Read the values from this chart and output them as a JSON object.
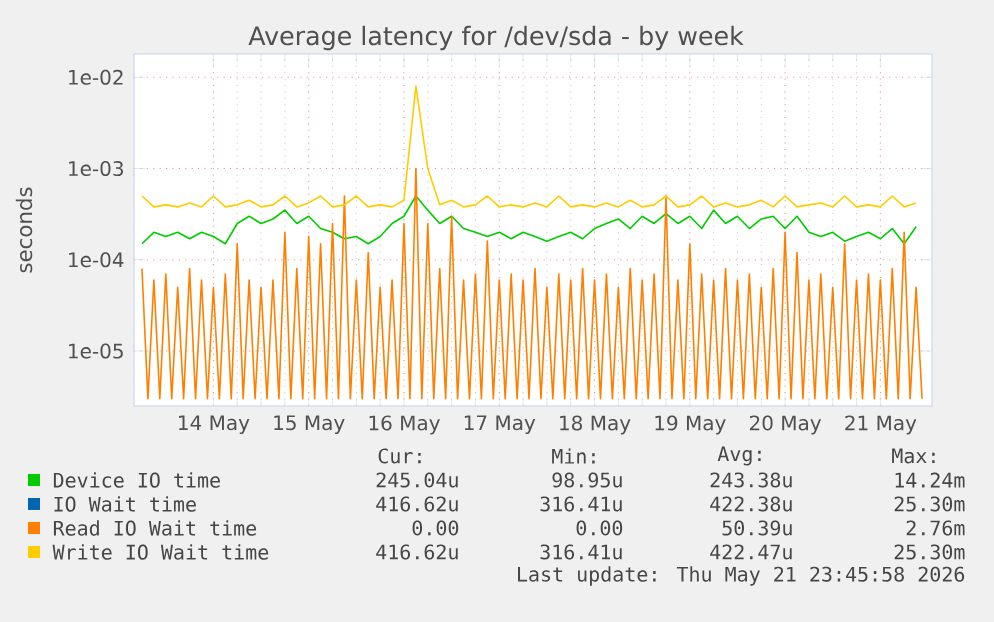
{
  "chart_data": {
    "type": "line",
    "title": "Average latency for /dev/sda - by week",
    "ylabel": "seconds",
    "log": "y",
    "grid": true,
    "legend": "bottom",
    "ylim": [
      2.5e-06,
      0.018
    ],
    "yticks": [
      {
        "value": 1e-05,
        "label": "1e-05"
      },
      {
        "value": 0.0001,
        "label": "1e-04"
      },
      {
        "value": 0.001,
        "label": "1e-03"
      },
      {
        "value": 0.01,
        "label": "1e-02"
      }
    ],
    "xlim": [
      "2026-05-13T16:00",
      "2026-05-22T01:00"
    ],
    "xticks": [
      {
        "value": "2026-05-14T12:00",
        "label": "14 May"
      },
      {
        "value": "2026-05-15T12:00",
        "label": "15 May"
      },
      {
        "value": "2026-05-16T12:00",
        "label": "16 May"
      },
      {
        "value": "2026-05-17T12:00",
        "label": "17 May"
      },
      {
        "value": "2026-05-18T12:00",
        "label": "18 May"
      },
      {
        "value": "2026-05-19T12:00",
        "label": "19 May"
      },
      {
        "value": "2026-05-20T12:00",
        "label": "20 May"
      },
      {
        "value": "2026-05-21T12:00",
        "label": "21 May"
      }
    ],
    "x": [
      "2026-05-13T18:00",
      "2026-05-13T21:00",
      "2026-05-14T00:00",
      "2026-05-14T03:00",
      "2026-05-14T06:00",
      "2026-05-14T09:00",
      "2026-05-14T12:00",
      "2026-05-14T15:00",
      "2026-05-14T18:00",
      "2026-05-14T21:00",
      "2026-05-15T00:00",
      "2026-05-15T03:00",
      "2026-05-15T06:00",
      "2026-05-15T09:00",
      "2026-05-15T12:00",
      "2026-05-15T15:00",
      "2026-05-15T18:00",
      "2026-05-15T21:00",
      "2026-05-16T00:00",
      "2026-05-16T03:00",
      "2026-05-16T06:00",
      "2026-05-16T09:00",
      "2026-05-16T12:00",
      "2026-05-16T15:00",
      "2026-05-16T18:00",
      "2026-05-16T21:00",
      "2026-05-17T00:00",
      "2026-05-17T03:00",
      "2026-05-17T06:00",
      "2026-05-17T09:00",
      "2026-05-17T12:00",
      "2026-05-17T15:00",
      "2026-05-17T18:00",
      "2026-05-17T21:00",
      "2026-05-18T00:00",
      "2026-05-18T03:00",
      "2026-05-18T06:00",
      "2026-05-18T09:00",
      "2026-05-18T12:00",
      "2026-05-18T15:00",
      "2026-05-18T18:00",
      "2026-05-18T21:00",
      "2026-05-19T00:00",
      "2026-05-19T03:00",
      "2026-05-19T06:00",
      "2026-05-19T09:00",
      "2026-05-19T12:00",
      "2026-05-19T15:00",
      "2026-05-19T18:00",
      "2026-05-19T21:00",
      "2026-05-20T00:00",
      "2026-05-20T03:00",
      "2026-05-20T06:00",
      "2026-05-20T09:00",
      "2026-05-20T12:00",
      "2026-05-20T15:00",
      "2026-05-20T18:00",
      "2026-05-20T21:00",
      "2026-05-21T00:00",
      "2026-05-21T03:00",
      "2026-05-21T06:00",
      "2026-05-21T09:00",
      "2026-05-21T12:00",
      "2026-05-21T15:00",
      "2026-05-21T18:00",
      "2026-05-21T21:00"
    ],
    "series": [
      {
        "name": "Device IO time",
        "color": "#00cc00",
        "values": [
          0.00015,
          0.0002,
          0.00018,
          0.0002,
          0.00017,
          0.0002,
          0.00018,
          0.00015,
          0.00025,
          0.0003,
          0.00025,
          0.00028,
          0.00035,
          0.00025,
          0.0003,
          0.00022,
          0.0002,
          0.00017,
          0.00018,
          0.00015,
          0.00018,
          0.00025,
          0.0003,
          0.0005,
          0.00035,
          0.00025,
          0.0003,
          0.00022,
          0.0002,
          0.00018,
          0.0002,
          0.00017,
          0.0002,
          0.00018,
          0.00016,
          0.00018,
          0.0002,
          0.00017,
          0.00022,
          0.00025,
          0.00028,
          0.00022,
          0.0003,
          0.00025,
          0.00032,
          0.00025,
          0.0003,
          0.00022,
          0.00035,
          0.00025,
          0.0003,
          0.00022,
          0.00028,
          0.0003,
          0.00022,
          0.0003,
          0.0002,
          0.00018,
          0.0002,
          0.00016,
          0.00018,
          0.0002,
          0.00017,
          0.00022,
          0.00015,
          0.00023
        ]
      },
      {
        "name": "IO Wait time",
        "color": "#0066b3",
        "values": [
          null,
          null,
          null,
          null,
          null,
          null,
          null,
          null,
          null,
          null,
          null,
          null,
          null,
          null,
          null,
          null,
          null,
          null,
          null,
          null,
          null,
          null,
          null,
          null,
          null,
          null,
          null,
          null,
          null,
          null,
          null,
          null,
          null,
          null,
          null,
          null,
          null,
          null,
          null,
          null,
          null,
          null,
          null,
          null,
          null,
          null,
          null,
          null,
          null,
          null,
          null,
          null,
          null,
          null,
          null,
          null,
          null,
          null,
          null,
          null,
          null,
          null,
          null,
          null,
          null,
          null
        ]
      },
      {
        "name": "Read IO Wait time",
        "color": "#ff8000",
        "x": [
          "2026-05-13T18:00",
          "2026-05-13T19:30",
          "2026-05-13T21:00",
          "2026-05-13T22:30",
          "2026-05-14T00:00",
          "2026-05-14T01:30",
          "2026-05-14T03:00",
          "2026-05-14T04:30",
          "2026-05-14T06:00",
          "2026-05-14T07:30",
          "2026-05-14T09:00",
          "2026-05-14T10:30",
          "2026-05-14T12:00",
          "2026-05-14T13:30",
          "2026-05-14T15:00",
          "2026-05-14T16:30",
          "2026-05-14T18:00",
          "2026-05-14T19:30",
          "2026-05-14T21:00",
          "2026-05-14T22:30",
          "2026-05-15T00:00",
          "2026-05-15T01:30",
          "2026-05-15T03:00",
          "2026-05-15T04:30",
          "2026-05-15T06:00",
          "2026-05-15T07:30",
          "2026-05-15T09:00",
          "2026-05-15T10:30",
          "2026-05-15T12:00",
          "2026-05-15T13:30",
          "2026-05-15T15:00",
          "2026-05-15T16:30",
          "2026-05-15T18:00",
          "2026-05-15T19:30",
          "2026-05-15T21:00",
          "2026-05-15T22:30",
          "2026-05-16T00:00",
          "2026-05-16T01:30",
          "2026-05-16T03:00",
          "2026-05-16T04:30",
          "2026-05-16T06:00",
          "2026-05-16T07:30",
          "2026-05-16T09:00",
          "2026-05-16T10:30",
          "2026-05-16T12:00",
          "2026-05-16T13:30",
          "2026-05-16T15:00",
          "2026-05-16T16:30",
          "2026-05-16T18:00",
          "2026-05-16T19:30",
          "2026-05-16T21:00",
          "2026-05-16T22:30",
          "2026-05-17T00:00",
          "2026-05-17T01:30",
          "2026-05-17T03:00",
          "2026-05-17T04:30",
          "2026-05-17T06:00",
          "2026-05-17T07:30",
          "2026-05-17T09:00",
          "2026-05-17T10:30",
          "2026-05-17T12:00",
          "2026-05-17T13:30",
          "2026-05-17T15:00",
          "2026-05-17T16:30",
          "2026-05-17T18:00",
          "2026-05-17T19:30",
          "2026-05-17T21:00",
          "2026-05-17T22:30",
          "2026-05-18T00:00",
          "2026-05-18T01:30",
          "2026-05-18T03:00",
          "2026-05-18T04:30",
          "2026-05-18T06:00",
          "2026-05-18T07:30",
          "2026-05-18T09:00",
          "2026-05-18T10:30",
          "2026-05-18T12:00",
          "2026-05-18T13:30",
          "2026-05-18T15:00",
          "2026-05-18T16:30",
          "2026-05-18T18:00",
          "2026-05-18T19:30",
          "2026-05-18T21:00",
          "2026-05-18T22:30",
          "2026-05-19T00:00",
          "2026-05-19T01:30",
          "2026-05-19T03:00",
          "2026-05-19T04:30",
          "2026-05-19T06:00",
          "2026-05-19T07:30",
          "2026-05-19T09:00",
          "2026-05-19T10:30",
          "2026-05-19T12:00",
          "2026-05-19T13:30",
          "2026-05-19T15:00",
          "2026-05-19T16:30",
          "2026-05-19T18:00",
          "2026-05-19T19:30",
          "2026-05-19T21:00",
          "2026-05-19T22:30",
          "2026-05-20T00:00",
          "2026-05-20T01:30",
          "2026-05-20T03:00",
          "2026-05-20T04:30",
          "2026-05-20T06:00",
          "2026-05-20T07:30",
          "2026-05-20T09:00",
          "2026-05-20T10:30",
          "2026-05-20T12:00",
          "2026-05-20T13:30",
          "2026-05-20T15:00",
          "2026-05-20T16:30",
          "2026-05-20T18:00",
          "2026-05-20T19:30",
          "2026-05-20T21:00",
          "2026-05-20T22:30",
          "2026-05-21T00:00",
          "2026-05-21T01:30",
          "2026-05-21T03:00",
          "2026-05-21T04:30",
          "2026-05-21T06:00",
          "2026-05-21T07:30",
          "2026-05-21T09:00",
          "2026-05-21T10:30",
          "2026-05-21T12:00",
          "2026-05-21T13:30",
          "2026-05-21T15:00",
          "2026-05-21T16:30",
          "2026-05-21T18:00",
          "2026-05-21T19:30",
          "2026-05-21T21:00",
          "2026-05-21T22:30"
        ],
        "values": [
          8e-05,
          3e-06,
          6e-05,
          3e-06,
          7e-05,
          3e-06,
          5e-05,
          3e-06,
          8e-05,
          3e-06,
          6e-05,
          3e-06,
          5e-05,
          3e-06,
          7e-05,
          3e-06,
          0.00015,
          3e-06,
          6e-05,
          3e-06,
          5e-05,
          3e-06,
          6e-05,
          3e-06,
          0.0002,
          3e-06,
          8e-05,
          3e-06,
          0.00018,
          3e-06,
          0.00015,
          3e-06,
          0.00025,
          3e-06,
          0.0005,
          3e-06,
          6e-05,
          3e-06,
          0.00012,
          3e-06,
          5e-05,
          3e-06,
          6e-05,
          3e-06,
          0.00025,
          3e-06,
          0.001,
          3e-06,
          0.00025,
          3e-06,
          8e-05,
          3e-06,
          0.0003,
          3e-06,
          6e-05,
          3e-06,
          7e-05,
          3e-06,
          0.00016,
          3e-06,
          6e-05,
          3e-06,
          7e-05,
          3e-06,
          6e-05,
          3e-06,
          8e-05,
          3e-06,
          5e-05,
          3e-06,
          7e-05,
          3e-06,
          6e-05,
          3e-06,
          8e-05,
          3e-06,
          6e-05,
          3e-06,
          7e-05,
          3e-06,
          5e-05,
          3e-06,
          8e-05,
          3e-06,
          6e-05,
          3e-06,
          7e-05,
          3e-06,
          0.0005,
          3e-06,
          6e-05,
          3e-06,
          0.00015,
          3e-06,
          7e-05,
          3e-06,
          6e-05,
          3e-06,
          8e-05,
          3e-06,
          6e-05,
          3e-06,
          7e-05,
          3e-06,
          5e-05,
          3e-06,
          8e-05,
          3e-06,
          0.0002,
          3e-06,
          0.00012,
          3e-06,
          6e-05,
          3e-06,
          7e-05,
          3e-06,
          5e-05,
          3e-06,
          0.00015,
          3e-06,
          6e-05,
          3e-06,
          7e-05,
          3e-06,
          6e-05,
          3e-06,
          8e-05,
          3e-06,
          0.0002,
          3e-06,
          5e-05,
          3e-06
        ]
      },
      {
        "name": "Write IO Wait time",
        "color": "#ffcc00",
        "values": [
          0.0005,
          0.00038,
          0.0004,
          0.00038,
          0.00042,
          0.00038,
          0.0005,
          0.00038,
          0.0004,
          0.00045,
          0.00038,
          0.0004,
          0.0005,
          0.00038,
          0.00042,
          0.0005,
          0.00038,
          0.0004,
          0.0005,
          0.00038,
          0.0004,
          0.00038,
          0.00045,
          0.008,
          0.001,
          0.0004,
          0.00045,
          0.00038,
          0.0004,
          0.0005,
          0.00038,
          0.0004,
          0.00038,
          0.00042,
          0.00038,
          0.0005,
          0.00038,
          0.0004,
          0.00038,
          0.00042,
          0.00038,
          0.00045,
          0.00038,
          0.0004,
          0.0005,
          0.00038,
          0.0004,
          0.0005,
          0.00038,
          0.00042,
          0.00038,
          0.0004,
          0.00045,
          0.00038,
          0.0005,
          0.00038,
          0.0004,
          0.00042,
          0.00038,
          0.0005,
          0.00038,
          0.0004,
          0.00038,
          0.0005,
          0.00038,
          0.00042
        ]
      }
    ],
    "annotations": [
      "Cur:",
      "Min:",
      "Avg:",
      "Max:",
      "245.04u",
      "98.95u",
      "243.38u",
      "14.24m",
      "416.62u",
      "316.41u",
      "422.38u",
      "25.30m",
      "0.00",
      "0.00",
      "50.39u",
      "2.76m",
      "416.62u",
      "316.41u",
      "422.47u",
      "25.30m",
      "Last update: Thu May 21 23:45:58 2026"
    ]
  }
}
